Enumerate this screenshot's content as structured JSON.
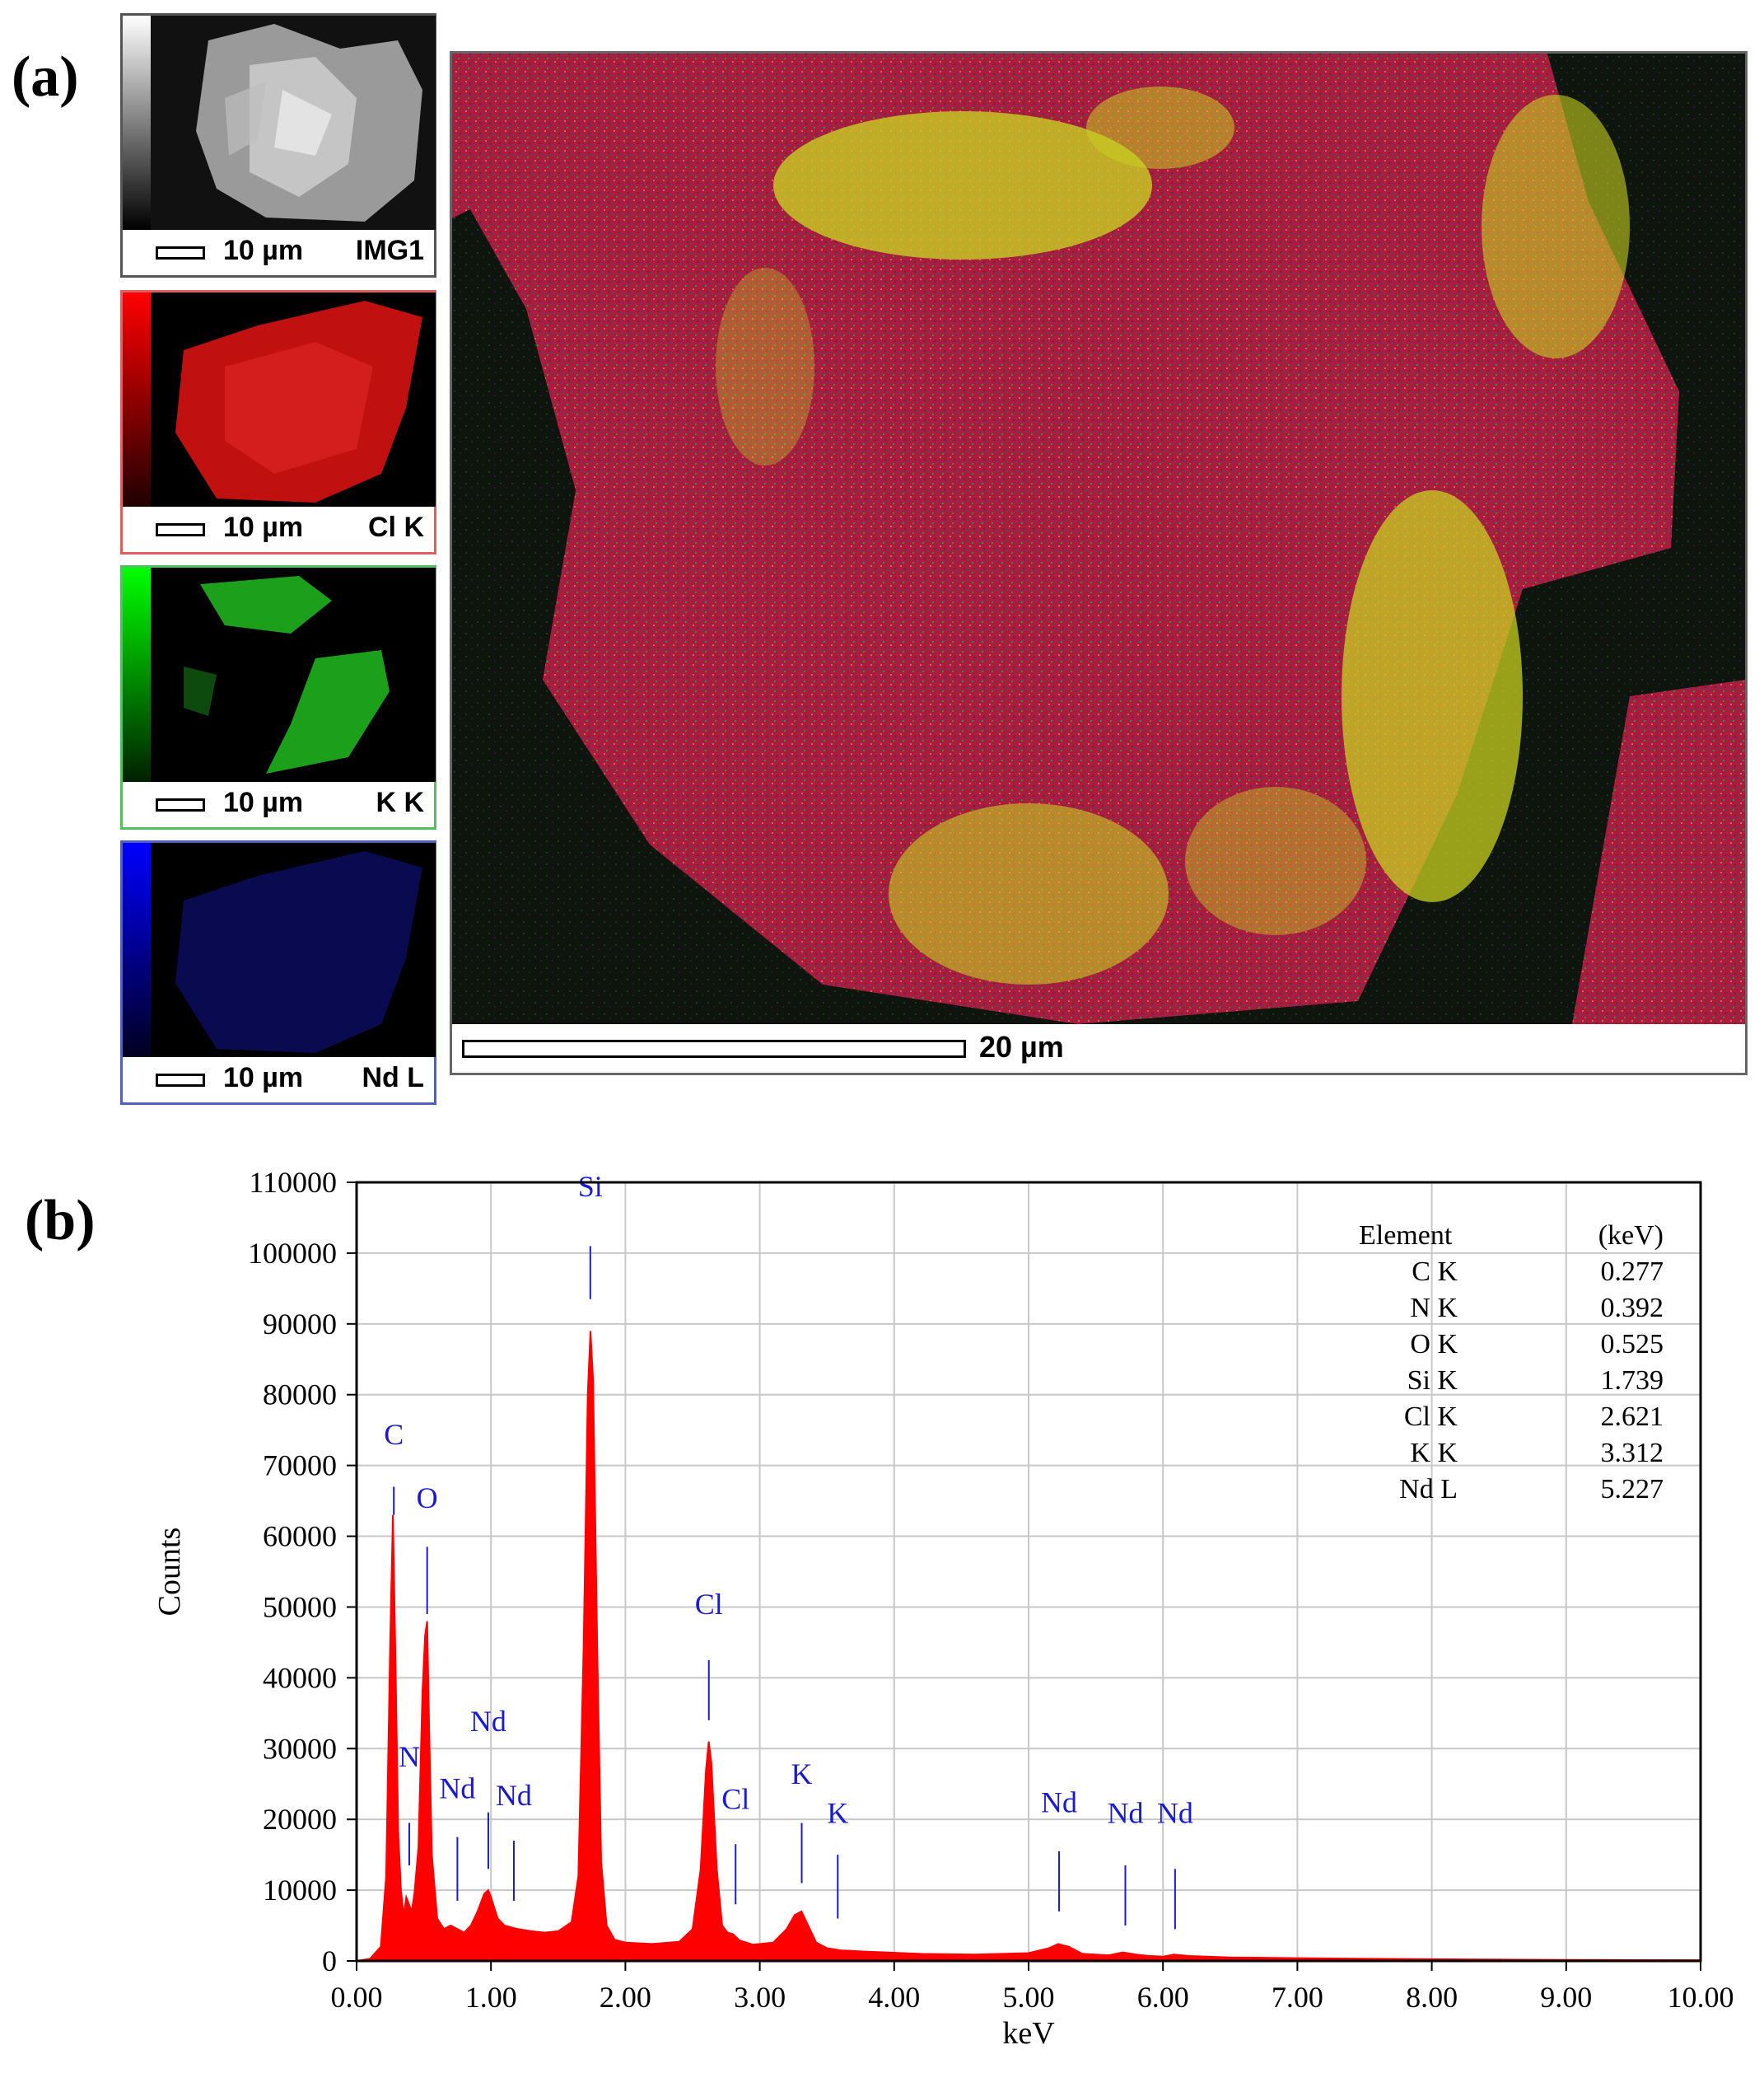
{
  "panels": {
    "a_label": "(a)",
    "b_label": "(b)"
  },
  "thumbnails": [
    {
      "scale": "10 µm",
      "name": "IMG1",
      "color": "#ffffff"
    },
    {
      "scale": "10 µm",
      "name": "Cl K",
      "color": "#ff2020"
    },
    {
      "scale": "10 µm",
      "name": "K K",
      "color": "#20e020"
    },
    {
      "scale": "10 µm",
      "name": "Nd L",
      "color": "#2020ff"
    }
  ],
  "overlay": {
    "scale": "20 µm",
    "colors": {
      "Cl": "#b0203a",
      "K": "#d8e020",
      "background": "#101510"
    }
  },
  "chart_data": {
    "type": "area",
    "xlabel": "keV",
    "ylabel": "Counts",
    "xlim": [
      0,
      10
    ],
    "ylim": [
      0,
      110000
    ],
    "x_ticks": [
      "0.00",
      "1.00",
      "2.00",
      "3.00",
      "4.00",
      "5.00",
      "6.00",
      "7.00",
      "8.00",
      "9.00",
      "10.00"
    ],
    "y_ticks": [
      "0",
      "10000",
      "20000",
      "30000",
      "40000",
      "50000",
      "60000",
      "70000",
      "80000",
      "90000",
      "100000",
      "110000"
    ],
    "grid": true,
    "fill_color": "#ff0000",
    "label_color": "#1a1ad0",
    "spectrum": {
      "x": [
        0.0,
        0.1,
        0.18,
        0.22,
        0.25,
        0.27,
        0.29,
        0.31,
        0.33,
        0.35,
        0.37,
        0.39,
        0.41,
        0.43,
        0.46,
        0.49,
        0.51,
        0.525,
        0.54,
        0.56,
        0.6,
        0.65,
        0.7,
        0.75,
        0.8,
        0.85,
        0.9,
        0.95,
        0.98,
        1.0,
        1.05,
        1.1,
        1.2,
        1.3,
        1.4,
        1.5,
        1.6,
        1.65,
        1.69,
        1.72,
        1.74,
        1.76,
        1.79,
        1.82,
        1.86,
        1.92,
        2.0,
        2.2,
        2.4,
        2.5,
        2.56,
        2.6,
        2.62,
        2.64,
        2.68,
        2.72,
        2.76,
        2.8,
        2.85,
        2.95,
        3.1,
        3.2,
        3.26,
        3.31,
        3.36,
        3.42,
        3.5,
        3.6,
        3.8,
        4.2,
        4.6,
        5.0,
        5.15,
        5.22,
        5.3,
        5.4,
        5.6,
        5.7,
        5.8,
        5.9,
        6.0,
        6.08,
        6.2,
        6.5,
        7.0,
        8.0,
        9.0,
        10.0
      ],
      "y": [
        0,
        300,
        2000,
        12000,
        45000,
        63000,
        42000,
        18000,
        10000,
        6500,
        9000,
        8000,
        7000,
        9500,
        16000,
        38000,
        46000,
        48000,
        33000,
        15000,
        6000,
        4500,
        5000,
        4500,
        4000,
        5000,
        7000,
        9500,
        10000,
        9000,
        6000,
        5000,
        4500,
        4200,
        4000,
        4200,
        5500,
        12000,
        45000,
        80000,
        89000,
        82000,
        45000,
        14000,
        5000,
        3000,
        2600,
        2400,
        2700,
        4500,
        13000,
        27000,
        31000,
        28000,
        13000,
        5000,
        4000,
        3800,
        2900,
        2300,
        2600,
        4500,
        6500,
        7000,
        5000,
        2600,
        1800,
        1500,
        1300,
        1000,
        900,
        1100,
        1800,
        2400,
        2000,
        1000,
        800,
        1200,
        900,
        700,
        600,
        900,
        700,
        500,
        400,
        250,
        150,
        100
      ]
    },
    "peaks": [
      {
        "label": "C",
        "x": 0.277,
        "ann_y": 73000,
        "line_top": 67000,
        "line_bot": 63000
      },
      {
        "label": "N",
        "x": 0.392,
        "ann_y": 27500,
        "line_top": 19500,
        "line_bot": 13500
      },
      {
        "label": "O",
        "x": 0.525,
        "ann_y": 64000,
        "line_top": 58500,
        "line_bot": 49000
      },
      {
        "label": "Nd",
        "x": 0.75,
        "ann_y": 23000,
        "line_top": 17500,
        "line_bot": 8500
      },
      {
        "label": "Nd",
        "x": 0.98,
        "ann_y": 32500,
        "line_top": 21000,
        "line_bot": 13000
      },
      {
        "label": "Nd",
        "x": 1.17,
        "ann_y": 22000,
        "line_top": 17000,
        "line_bot": 8500
      },
      {
        "label": "Si",
        "x": 1.739,
        "ann_y": 108000,
        "line_top": 101000,
        "line_bot": 93500
      },
      {
        "label": "Cl",
        "x": 2.621,
        "ann_y": 49000,
        "line_top": 42500,
        "line_bot": 34000
      },
      {
        "label": "Cl",
        "x": 2.82,
        "ann_y": 21500,
        "line_top": 16500,
        "line_bot": 8000
      },
      {
        "label": "K",
        "x": 3.312,
        "ann_y": 25000,
        "line_top": 19500,
        "line_bot": 11000
      },
      {
        "label": "K",
        "x": 3.58,
        "ann_y": 19500,
        "line_top": 15000,
        "line_bot": 6000
      },
      {
        "label": "Nd",
        "x": 5.227,
        "ann_y": 21000,
        "line_top": 15500,
        "line_bot": 7000
      },
      {
        "label": "Nd",
        "x": 5.72,
        "ann_y": 19500,
        "line_top": 13500,
        "line_bot": 5000
      },
      {
        "label": "Nd",
        "x": 6.09,
        "ann_y": 19500,
        "line_top": 13000,
        "line_bot": 4500
      }
    ],
    "legend_table": {
      "header": [
        "Element",
        "(keV)"
      ],
      "rows": [
        [
          "C K",
          "0.277"
        ],
        [
          "N K",
          "0.392"
        ],
        [
          "O K",
          "0.525"
        ],
        [
          "Si K",
          "1.739"
        ],
        [
          "Cl K",
          "2.621"
        ],
        [
          "K K",
          "3.312"
        ],
        [
          "Nd L",
          "5.227"
        ]
      ],
      "placement": "top-right"
    }
  }
}
